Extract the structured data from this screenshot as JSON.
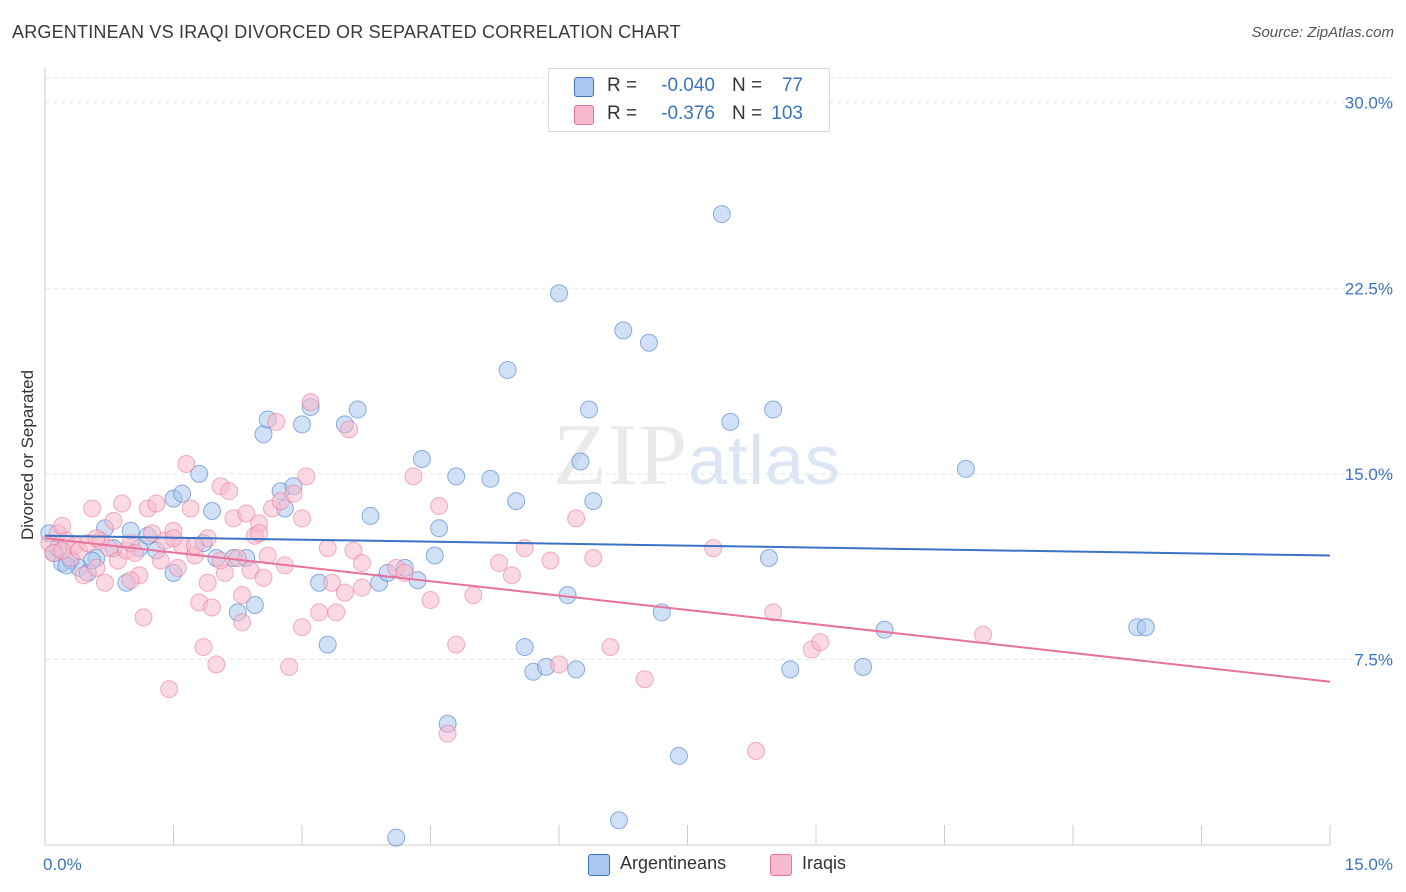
{
  "header": {
    "title": "ARGENTINEAN VS IRAQI DIVORCED OR SEPARATED CORRELATION CHART",
    "source": "Source: ZipAtlas.com"
  },
  "legend_top": {
    "rows": [
      {
        "r_label": "R =",
        "r_value": "-0.040",
        "n_label": "N =",
        "n_value": "77",
        "color": "#aac8f0"
      },
      {
        "r_label": "R =",
        "r_value": "-0.376",
        "n_label": "N =",
        "n_value": "103",
        "color": "#f7b9cc"
      }
    ]
  },
  "legend_bottom": {
    "items": [
      {
        "label": "Argentineans",
        "color": "#aac8f0"
      },
      {
        "label": "Iraqis",
        "color": "#f7b9cc"
      }
    ]
  },
  "watermark": {
    "zip": "ZIP",
    "atlas": "atlas"
  },
  "chart_data": {
    "type": "scatter",
    "title": "ARGENTINEAN VS IRAQI DIVORCED OR SEPARATED CORRELATION CHART",
    "xlabel": "",
    "ylabel": "Divorced or Separated",
    "xlim": [
      0,
      15
    ],
    "ylim": [
      0,
      31
    ],
    "x_tick_labels": [
      "0.0%",
      "15.0%"
    ],
    "y_ticks": [
      7.5,
      15.0,
      22.5,
      30.0
    ],
    "y_tick_labels": [
      "7.5%",
      "15.0%",
      "22.5%",
      "30.0%"
    ],
    "grid": true,
    "legend_position": "top-center",
    "series": [
      {
        "name": "Argentineans",
        "color": "#3b73c4",
        "fill": "#aac8f0",
        "trend": {
          "x": [
            0,
            15
          ],
          "y": [
            12.5,
            11.7
          ]
        },
        "points": [
          [
            0.05,
            12.6
          ],
          [
            0.1,
            11.8
          ],
          [
            0.2,
            11.4
          ],
          [
            0.3,
            11.5
          ],
          [
            0.4,
            11.2
          ],
          [
            0.5,
            11.0
          ],
          [
            0.6,
            11.6
          ],
          [
            0.7,
            12.8
          ],
          [
            0.8,
            12.0
          ],
          [
            0.95,
            10.6
          ],
          [
            1.0,
            12.7
          ],
          [
            1.1,
            12.0
          ],
          [
            1.2,
            12.5
          ],
          [
            1.3,
            11.9
          ],
          [
            1.5,
            11.0
          ],
          [
            1.5,
            14.0
          ],
          [
            1.6,
            14.2
          ],
          [
            1.8,
            15.0
          ],
          [
            1.85,
            12.2
          ],
          [
            1.95,
            13.5
          ],
          [
            2.0,
            11.6
          ],
          [
            2.2,
            11.6
          ],
          [
            2.25,
            9.4
          ],
          [
            2.35,
            11.6
          ],
          [
            2.45,
            9.7
          ],
          [
            2.55,
            16.6
          ],
          [
            2.6,
            17.2
          ],
          [
            2.75,
            14.3
          ],
          [
            2.8,
            13.6
          ],
          [
            2.9,
            14.5
          ],
          [
            3.0,
            17.0
          ],
          [
            3.1,
            17.7
          ],
          [
            3.2,
            10.6
          ],
          [
            3.3,
            8.1
          ],
          [
            3.5,
            17.0
          ],
          [
            3.65,
            17.6
          ],
          [
            3.8,
            13.3
          ],
          [
            3.9,
            10.6
          ],
          [
            4.0,
            11.0
          ],
          [
            4.1,
            0.3
          ],
          [
            4.2,
            11.2
          ],
          [
            4.35,
            10.7
          ],
          [
            4.4,
            15.6
          ],
          [
            4.55,
            11.7
          ],
          [
            4.6,
            12.8
          ],
          [
            4.7,
            4.9
          ],
          [
            4.8,
            14.9
          ],
          [
            5.2,
            14.8
          ],
          [
            5.4,
            19.2
          ],
          [
            5.5,
            13.9
          ],
          [
            5.6,
            8.0
          ],
          [
            5.7,
            7.0
          ],
          [
            5.85,
            7.2
          ],
          [
            6.0,
            22.3
          ],
          [
            6.1,
            10.1
          ],
          [
            6.2,
            7.1
          ],
          [
            6.25,
            15.5
          ],
          [
            6.35,
            17.6
          ],
          [
            6.4,
            13.9
          ],
          [
            6.7,
            1.0
          ],
          [
            6.75,
            20.8
          ],
          [
            7.05,
            20.3
          ],
          [
            7.2,
            9.4
          ],
          [
            7.4,
            3.6
          ],
          [
            7.9,
            25.5
          ],
          [
            8.0,
            17.1
          ],
          [
            8.45,
            11.6
          ],
          [
            8.5,
            17.6
          ],
          [
            8.7,
            7.1
          ],
          [
            9.55,
            7.2
          ],
          [
            9.8,
            8.7
          ],
          [
            10.75,
            15.2
          ],
          [
            12.75,
            8.8
          ],
          [
            12.85,
            8.8
          ],
          [
            0.15,
            12.0
          ],
          [
            0.25,
            11.3
          ],
          [
            0.55,
            11.5
          ]
        ]
      },
      {
        "name": "Iraqis",
        "color": "#e8729a",
        "fill": "#f7b9cc",
        "trend": {
          "x": [
            0,
            15
          ],
          "y": [
            12.4,
            6.6
          ]
        },
        "points": [
          [
            0.05,
            12.2
          ],
          [
            0.1,
            11.8
          ],
          [
            0.15,
            12.6
          ],
          [
            0.2,
            12.9
          ],
          [
            0.25,
            12.3
          ],
          [
            0.3,
            11.6
          ],
          [
            0.35,
            12.1
          ],
          [
            0.4,
            11.9
          ],
          [
            0.45,
            10.9
          ],
          [
            0.5,
            12.2
          ],
          [
            0.55,
            13.6
          ],
          [
            0.6,
            11.2
          ],
          [
            0.65,
            12.3
          ],
          [
            0.7,
            10.6
          ],
          [
            0.75,
            12.0
          ],
          [
            0.8,
            13.1
          ],
          [
            0.85,
            11.5
          ],
          [
            0.9,
            13.8
          ],
          [
            0.95,
            11.9
          ],
          [
            1.0,
            12.2
          ],
          [
            1.05,
            11.8
          ],
          [
            1.1,
            10.9
          ],
          [
            1.15,
            9.2
          ],
          [
            1.2,
            13.6
          ],
          [
            1.25,
            12.6
          ],
          [
            1.3,
            13.8
          ],
          [
            1.35,
            11.5
          ],
          [
            1.4,
            12.3
          ],
          [
            1.45,
            6.3
          ],
          [
            1.5,
            12.7
          ],
          [
            1.55,
            11.2
          ],
          [
            1.6,
            12.1
          ],
          [
            1.65,
            15.4
          ],
          [
            1.7,
            13.6
          ],
          [
            1.75,
            11.7
          ],
          [
            1.8,
            9.8
          ],
          [
            1.85,
            8.0
          ],
          [
            1.9,
            10.6
          ],
          [
            1.95,
            9.6
          ],
          [
            2.0,
            7.3
          ],
          [
            2.05,
            14.5
          ],
          [
            2.1,
            11.0
          ],
          [
            2.15,
            14.3
          ],
          [
            2.2,
            13.2
          ],
          [
            2.25,
            11.6
          ],
          [
            2.3,
            9.0
          ],
          [
            2.35,
            13.4
          ],
          [
            2.4,
            11.1
          ],
          [
            2.45,
            12.5
          ],
          [
            2.5,
            13.0
          ],
          [
            2.55,
            10.8
          ],
          [
            2.6,
            11.7
          ],
          [
            2.65,
            13.6
          ],
          [
            2.7,
            17.1
          ],
          [
            2.75,
            13.9
          ],
          [
            2.8,
            11.3
          ],
          [
            2.85,
            7.2
          ],
          [
            2.9,
            14.2
          ],
          [
            3.0,
            8.8
          ],
          [
            3.05,
            14.9
          ],
          [
            3.1,
            17.9
          ],
          [
            3.2,
            9.4
          ],
          [
            3.3,
            12.0
          ],
          [
            3.35,
            10.6
          ],
          [
            3.4,
            9.4
          ],
          [
            3.5,
            10.2
          ],
          [
            3.55,
            16.8
          ],
          [
            3.6,
            11.9
          ],
          [
            3.7,
            10.4
          ],
          [
            4.1,
            11.2
          ],
          [
            4.3,
            14.9
          ],
          [
            4.5,
            9.9
          ],
          [
            4.6,
            13.7
          ],
          [
            4.7,
            4.5
          ],
          [
            4.8,
            8.1
          ],
          [
            5.0,
            10.1
          ],
          [
            5.3,
            11.4
          ],
          [
            5.45,
            10.9
          ],
          [
            5.6,
            12.0
          ],
          [
            5.9,
            11.5
          ],
          [
            6.0,
            7.3
          ],
          [
            6.2,
            13.2
          ],
          [
            6.4,
            11.6
          ],
          [
            6.6,
            8.0
          ],
          [
            7.0,
            6.7
          ],
          [
            7.8,
            12.0
          ],
          [
            8.3,
            3.8
          ],
          [
            8.5,
            9.4
          ],
          [
            8.95,
            7.9
          ],
          [
            9.05,
            8.2
          ],
          [
            10.95,
            8.5
          ],
          [
            1.9,
            12.4
          ],
          [
            2.05,
            11.5
          ],
          [
            0.6,
            12.4
          ],
          [
            1.0,
            10.7
          ],
          [
            1.5,
            12.4
          ],
          [
            1.75,
            12.1
          ],
          [
            2.3,
            10.1
          ],
          [
            2.5,
            12.6
          ],
          [
            3.0,
            13.2
          ],
          [
            3.7,
            11.4
          ],
          [
            4.2,
            11.0
          ],
          [
            0.2,
            11.9
          ]
        ]
      }
    ]
  }
}
